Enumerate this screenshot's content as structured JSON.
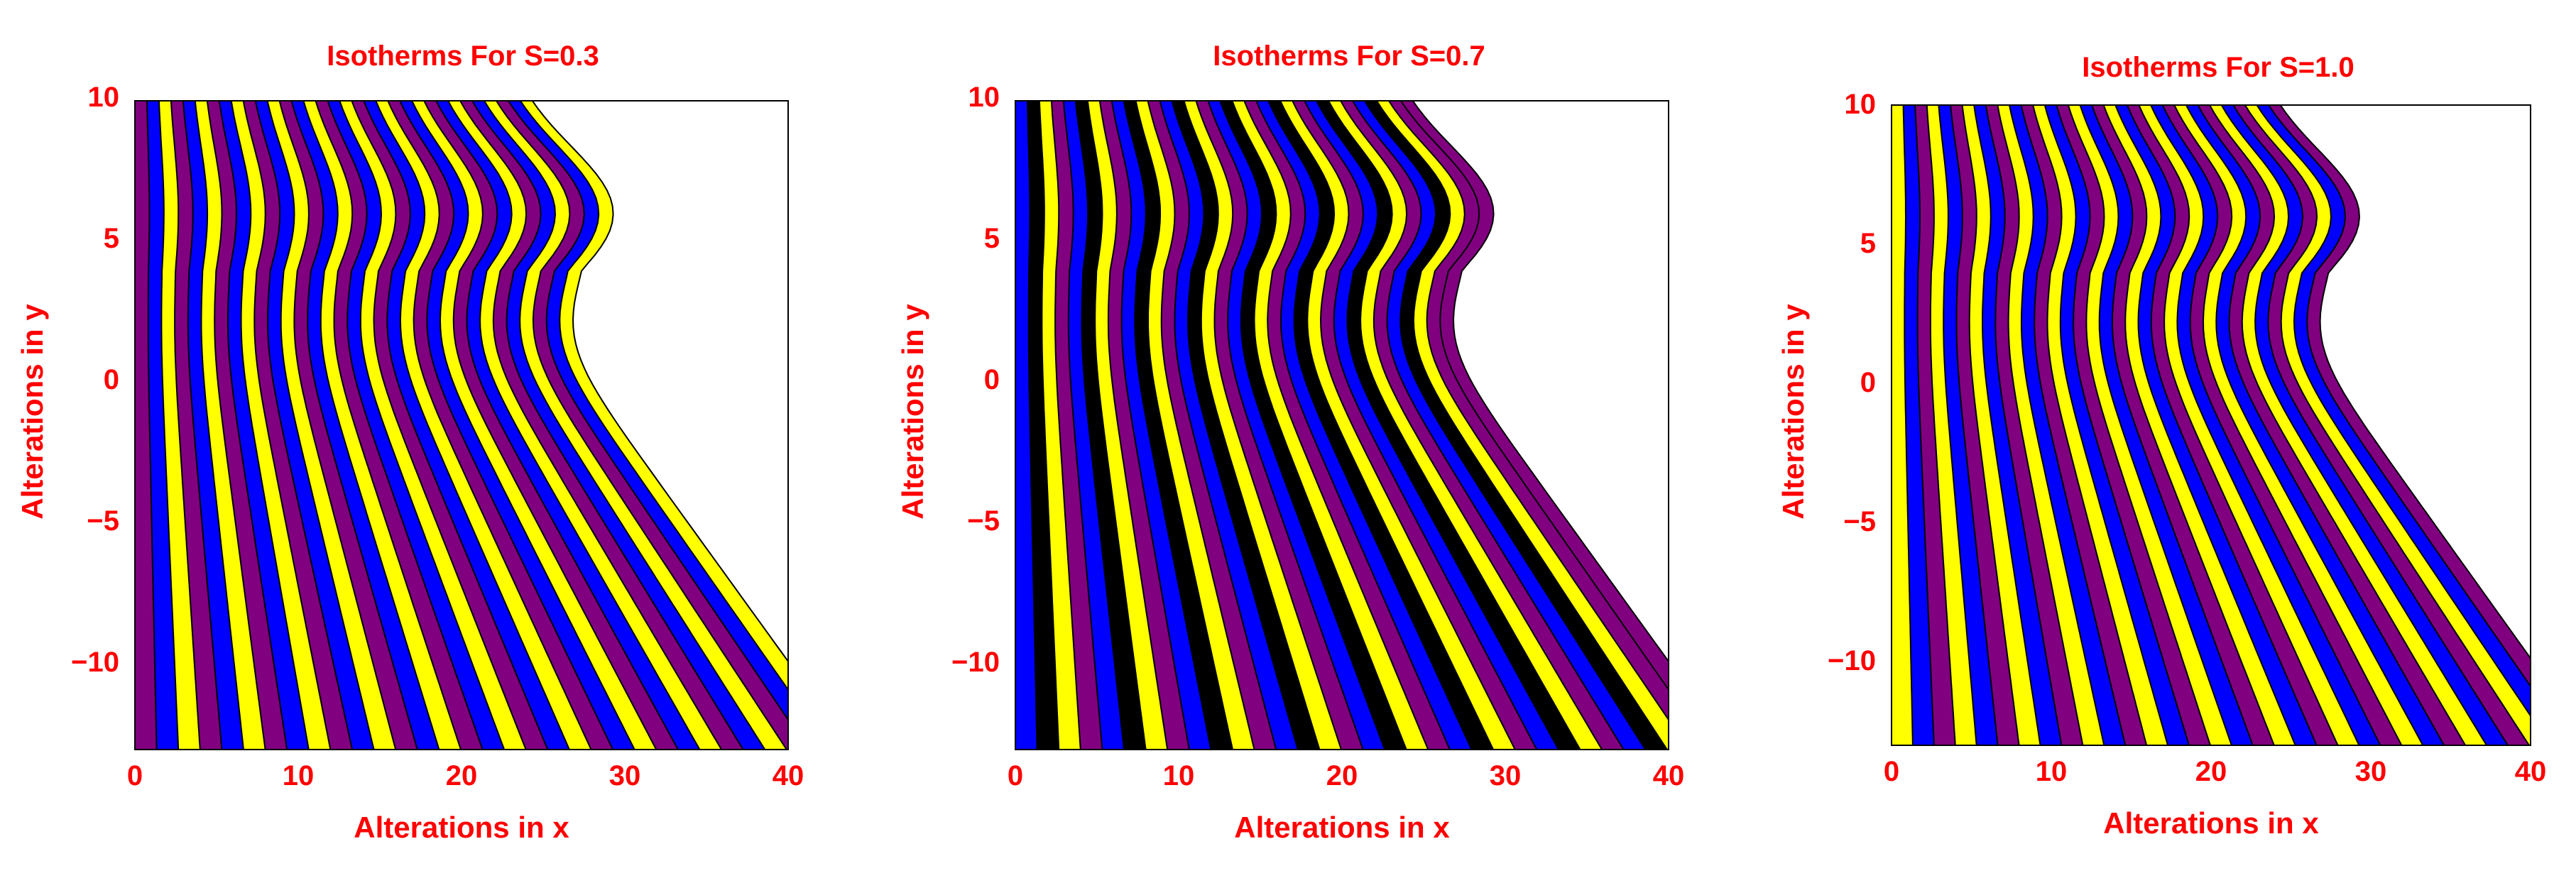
{
  "figure": {
    "label_color": "#ff0000",
    "band_colors": [
      "#800080",
      "#0000ff",
      "#ffff00",
      "#000000"
    ],
    "edge_color": "#000000"
  },
  "chart_data": [
    {
      "type": "contour",
      "title": "Isotherms For S=0.3",
      "xlabel": "Alterations in x",
      "ylabel": "Alterations in y",
      "xlim": [
        0,
        40
      ],
      "ylim": [
        -13,
        10
      ],
      "xticks": [
        0,
        10,
        20,
        30,
        40
      ],
      "xtick_labels": [
        "0",
        "10",
        "20",
        "30",
        "40"
      ],
      "yticks": [
        -10,
        -5,
        0,
        5,
        10
      ],
      "ytick_labels": [
        "−10",
        "−5",
        "0",
        "5",
        "10"
      ],
      "band_palette": [
        "#800080",
        "#0000ff",
        "#ffff00"
      ],
      "band_count": 33,
      "outer_band_color": "#ffff00",
      "grid": false,
      "legend": "none"
    },
    {
      "type": "contour",
      "title": "Isotherms For S=0.7",
      "xlabel": "Alterations in x",
      "ylabel": "Alterations in y",
      "xlim": [
        0,
        40
      ],
      "ylim": [
        -13,
        10
      ],
      "xticks": [
        0,
        10,
        20,
        30,
        40
      ],
      "xtick_labels": [
        "0",
        "10",
        "20",
        "30",
        "40"
      ],
      "yticks": [
        -10,
        -5,
        0,
        5,
        10
      ],
      "ytick_labels": [
        "−10",
        "−5",
        "0",
        "5",
        "10"
      ],
      "band_palette": [
        "#0000ff",
        "#000000",
        "#ffff00",
        "#800080"
      ],
      "band_count": 33,
      "outer_band_color": "#800080",
      "grid": false,
      "legend": "none"
    },
    {
      "type": "contour",
      "title": "Isotherms For S=1.0",
      "xlabel": "Alterations in x",
      "ylabel": "Alterations in y",
      "xlim": [
        0,
        40
      ],
      "ylim": [
        -13,
        10
      ],
      "xticks": [
        0,
        10,
        20,
        30,
        40
      ],
      "xtick_labels": [
        "0",
        "10",
        "20",
        "30",
        "40"
      ],
      "yticks": [
        -10,
        -5,
        0,
        5,
        10
      ],
      "ytick_labels": [
        "−10",
        "−5",
        "0",
        "5",
        "10"
      ],
      "band_palette": [
        "#ffff00",
        "#0000ff",
        "#800080"
      ],
      "band_count": 33,
      "outer_band_color": "#800080",
      "grid": false,
      "legend": "none"
    }
  ]
}
